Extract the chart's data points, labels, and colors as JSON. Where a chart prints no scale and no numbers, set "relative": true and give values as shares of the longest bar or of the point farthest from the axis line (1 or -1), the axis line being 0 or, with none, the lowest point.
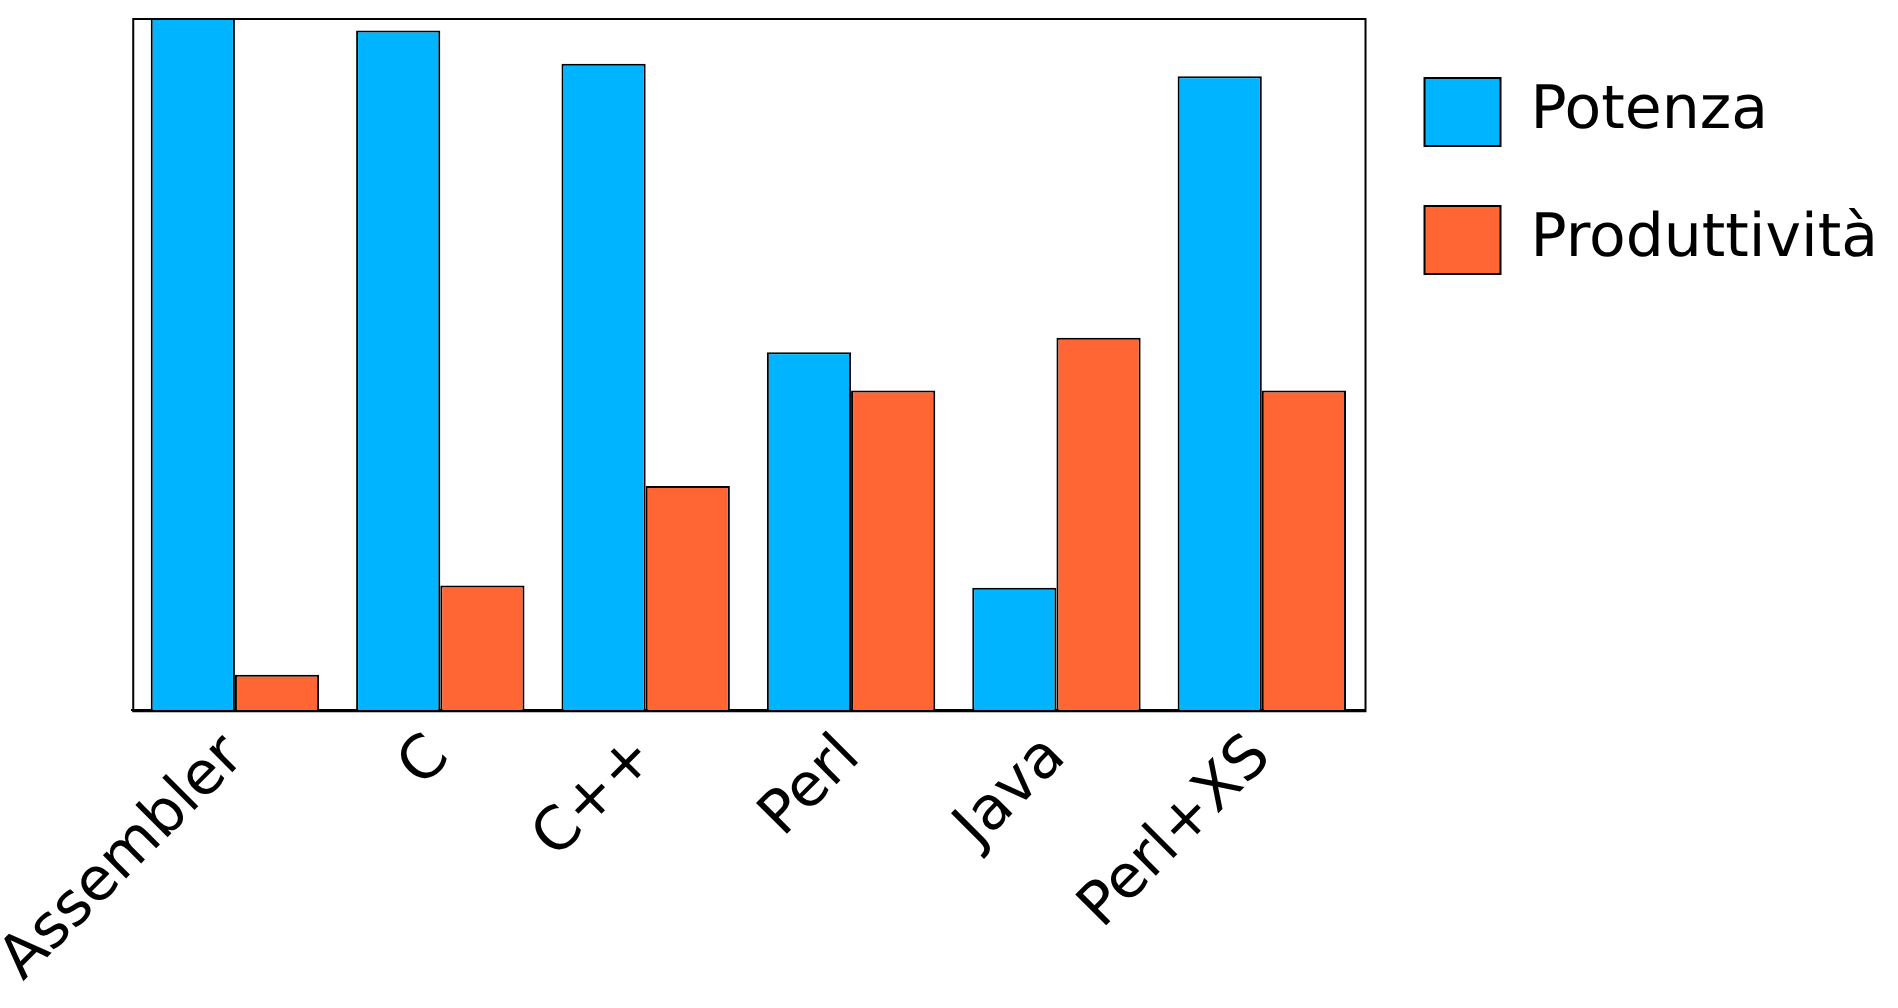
{
  "chart_data": {
    "type": "bar",
    "relative": true,
    "categories": [
      "Assembler",
      "C",
      "C++",
      "Perl",
      "Java",
      "Perl+XS"
    ],
    "series": [
      {
        "name": "Potenza",
        "color": "#00b4ff",
        "values": [
          1,
          0.982,
          0.934,
          0.517,
          0.177,
          0.916
        ]
      },
      {
        "name": "Produttività",
        "color": "#ff6633",
        "values": [
          0.051,
          0.18,
          0.324,
          0.462,
          0.538,
          0.462
        ]
      }
    ],
    "legend": "right",
    "grid": false
  }
}
